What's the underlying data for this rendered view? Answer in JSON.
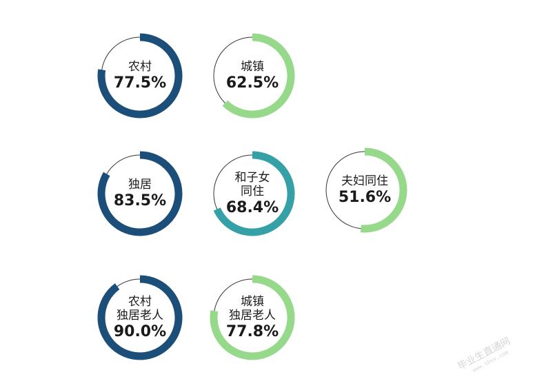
{
  "chart_data": {
    "type": "donut",
    "title": "",
    "items": [
      {
        "name_lines": [
          "农村"
        ],
        "value": 77.5,
        "label": "77.5%",
        "color": "#1b4f79"
      },
      {
        "name_lines": [
          "城镇"
        ],
        "value": 62.5,
        "label": "62.5%",
        "color": "#97d98a"
      },
      {
        "name_lines": [
          "独居"
        ],
        "value": 83.5,
        "label": "83.5%",
        "color": "#1b4f79"
      },
      {
        "name_lines": [
          "和子女",
          "同住"
        ],
        "value": 68.4,
        "label": "68.4%",
        "color": "#35a0a5"
      },
      {
        "name_lines": [
          "夫妇同住"
        ],
        "value": 51.6,
        "label": "51.6%",
        "color": "#97d98a"
      },
      {
        "name_lines": [
          "农村",
          "独居老人"
        ],
        "value": 90.0,
        "label": "90.0%",
        "color": "#1b4f79"
      },
      {
        "name_lines": [
          "城镇",
          "独居老人"
        ],
        "value": 77.8,
        "label": "77.8%",
        "color": "#97d98a"
      }
    ]
  },
  "colors": {
    "background": "#ffffff",
    "track": "#333333",
    "text": "#1a1a1a"
  },
  "watermark": {
    "text": "毕业生直通网",
    "url": "www.sbvv.com"
  }
}
